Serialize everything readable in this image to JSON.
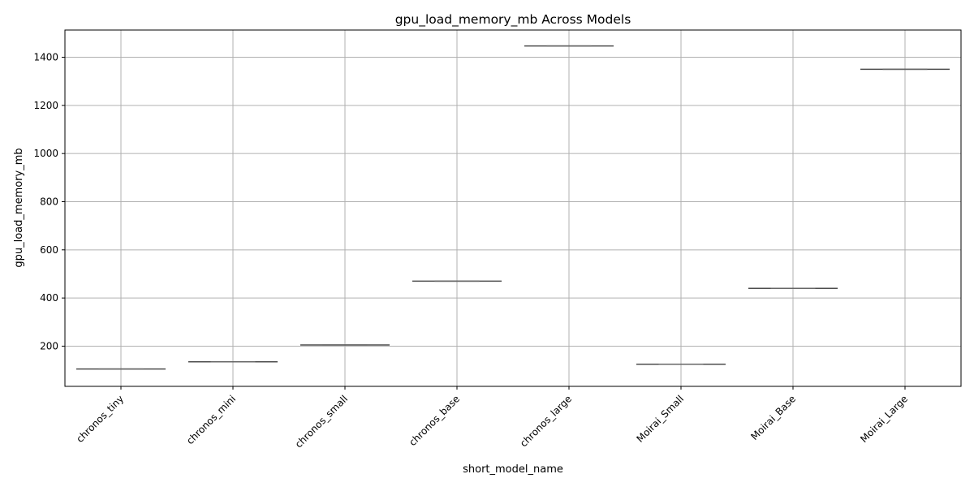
{
  "chart_data": {
    "type": "box",
    "title": "gpu_load_memory_mb Across Models",
    "xlabel": "short_model_name",
    "ylabel": "gpu_load_memory_mb",
    "categories": [
      "chronos_tiny",
      "chronos_mini",
      "chronos_small",
      "chronos_base",
      "chronos_large",
      "Moirai_Small",
      "Moirai_Base",
      "Moirai_Large"
    ],
    "values": [
      105,
      135,
      205,
      470,
      1447,
      125,
      440,
      1350
    ],
    "ylim": [
      33,
      1513
    ],
    "yticks": [
      200,
      400,
      600,
      800,
      1000,
      1200,
      1400
    ],
    "grid": true,
    "colors": {
      "box_line": "#4d4d4d",
      "grid": "#b0b0b0",
      "axis": "#000000"
    }
  }
}
